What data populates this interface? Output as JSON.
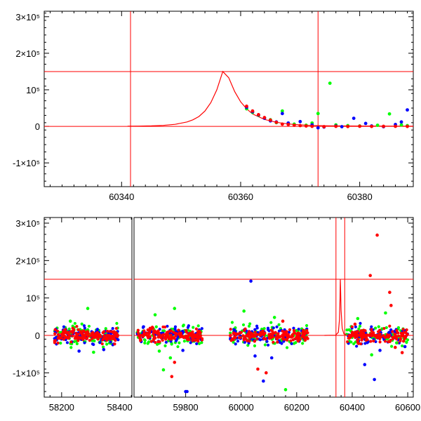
{
  "chart_data": [
    {
      "type": "scatter",
      "title": "",
      "xlabel": "",
      "ylabel": "",
      "xlim": [
        60327,
        60389
      ],
      "ylim": [
        -165000,
        315000
      ],
      "y_ticks": [
        {
          "value": -100000,
          "label": "-1×10⁵"
        },
        {
          "value": 0,
          "label": "0"
        },
        {
          "value": 100000,
          "label": "10⁵"
        },
        {
          "value": 200000,
          "label": "2×10⁵"
        },
        {
          "value": 300000,
          "label": "3×10⁵"
        }
      ],
      "x_ticks": [
        {
          "value": 60340,
          "label": "60340"
        },
        {
          "value": 60360,
          "label": "60360"
        },
        {
          "value": 60380,
          "label": "60380"
        }
      ],
      "vertical_lines": [
        60341.5,
        60373
      ],
      "horizontal_lines": [
        0,
        150000
      ],
      "model_curve": {
        "color": "#ff0000",
        "points": [
          [
            60341,
            400
          ],
          [
            60343,
            700
          ],
          [
            60345,
            1300
          ],
          [
            60347,
            2600
          ],
          [
            60349,
            5500
          ],
          [
            60351,
            12000
          ],
          [
            60352,
            18000
          ],
          [
            60353,
            27000
          ],
          [
            60354,
            42000
          ],
          [
            60355,
            65000
          ],
          [
            60356,
            100000
          ],
          [
            60357,
            150000
          ],
          [
            60358,
            133000
          ],
          [
            60359,
            95000
          ],
          [
            60360,
            67000
          ],
          [
            60361,
            48000
          ],
          [
            60362,
            34000
          ],
          [
            60364,
            19000
          ],
          [
            60366,
            11000
          ],
          [
            60368,
            6500
          ],
          [
            60370,
            4000
          ],
          [
            60372,
            2500
          ],
          [
            60375,
            1500
          ],
          [
            60380,
            800
          ],
          [
            60389,
            400
          ]
        ]
      },
      "series": [
        {
          "color": "#00ff00",
          "points": [
            [
              60361,
              48000
            ],
            [
              60362,
              38000
            ],
            [
              60363,
              30000
            ],
            [
              60364,
              23000
            ],
            [
              60365,
              18000
            ],
            [
              60366,
              10000
            ],
            [
              60367,
              42000
            ],
            [
              60368,
              8000
            ],
            [
              60369,
              6000
            ],
            [
              60371,
              3000
            ],
            [
              60372,
              9000
            ],
            [
              60373,
              35000
            ],
            [
              60375,
              118000
            ],
            [
              60376,
              4000
            ],
            [
              60378,
              2000
            ],
            [
              60380,
              1000
            ],
            [
              60383,
              3000
            ],
            [
              60385,
              34000
            ],
            [
              60387,
              4000
            ],
            [
              60388,
              2000
            ]
          ]
        },
        {
          "color": "#0000ff",
          "points": [
            [
              60361,
              52000
            ],
            [
              60362,
              40000
            ],
            [
              60363,
              31000
            ],
            [
              60364,
              22000
            ],
            [
              60365,
              15000
            ],
            [
              60366,
              12000
            ],
            [
              60367,
              35000
            ],
            [
              60368,
              9000
            ],
            [
              60370,
              13000
            ],
            [
              60372,
              4000
            ],
            [
              60373,
              -4000
            ],
            [
              60374,
              -2000
            ],
            [
              60376,
              1000
            ],
            [
              60377,
              -1000
            ],
            [
              60379,
              22000
            ],
            [
              60381,
              8000
            ],
            [
              60382,
              1000
            ],
            [
              60384,
              -1000
            ],
            [
              60386,
              5000
            ],
            [
              60387,
              12000
            ],
            [
              60388,
              45000
            ]
          ]
        },
        {
          "color": "#ff0000",
          "points": [
            [
              60361,
              55000
            ],
            [
              60362,
              42000
            ],
            [
              60363,
              32000
            ],
            [
              60364,
              24000
            ],
            [
              60365,
              17000
            ],
            [
              60366,
              11000
            ],
            [
              60367,
              6000
            ],
            [
              60368,
              5000
            ],
            [
              60369,
              3000
            ],
            [
              60370,
              2000
            ],
            [
              60371,
              1000
            ],
            [
              60372,
              0
            ],
            [
              60374,
              -1000
            ],
            [
              60376,
              0
            ],
            [
              60378,
              -500
            ],
            [
              60380,
              200
            ],
            [
              60382,
              -300
            ],
            [
              60384,
              0
            ],
            [
              60386,
              100
            ],
            [
              60388,
              -200
            ]
          ]
        }
      ]
    },
    {
      "type": "scatter",
      "title": "",
      "xlabel": "",
      "ylabel": "",
      "xlim": [
        58140,
        60620
      ],
      "x_gap": [
        58442,
        59614
      ],
      "ylim": [
        -165000,
        315000
      ],
      "y_ticks": [
        {
          "value": -100000,
          "label": "-1×10⁵"
        },
        {
          "value": 0,
          "label": "0"
        },
        {
          "value": 100000,
          "label": "10⁵"
        },
        {
          "value": 200000,
          "label": "2×10⁵"
        },
        {
          "value": 300000,
          "label": "3×10⁵"
        }
      ],
      "x_ticks": [
        {
          "value": 58200,
          "label": "58200"
        },
        {
          "value": 58400,
          "label": "58400"
        },
        {
          "value": 59800,
          "label": "59800"
        },
        {
          "value": 60000,
          "label": "60000"
        },
        {
          "value": 60200,
          "label": "60200"
        },
        {
          "value": 60400,
          "label": "60400"
        },
        {
          "value": 60600,
          "label": "60600"
        }
      ],
      "vertical_lines": [
        60341.5,
        60373
      ],
      "horizontal_lines": [
        0,
        150000
      ],
      "seasons": [
        [
          58175,
          58395
        ],
        [
          59625,
          59860
        ],
        [
          59960,
          60240
        ],
        [
          60360,
          60600
        ]
      ],
      "model_curve": {
        "color": "#ff0000",
        "points": [
          [
            60300,
            0
          ],
          [
            60340,
            500
          ],
          [
            60350,
            8000
          ],
          [
            60354,
            42000
          ],
          [
            60356,
            100000
          ],
          [
            60357,
            150000
          ],
          [
            60358,
            133000
          ],
          [
            60360,
            67000
          ],
          [
            60364,
            19000
          ],
          [
            60370,
            4000
          ],
          [
            60380,
            800
          ],
          [
            60400,
            0
          ]
        ]
      },
      "series": [
        {
          "color": "#00ff00",
          "outliers": [
            [
              58290,
              72000
            ],
            [
              58310,
              -45000
            ],
            [
              58230,
              38000
            ],
            [
              59690,
              55000
            ],
            [
              59705,
              -42000
            ],
            [
              59720,
              -92000
            ],
            [
              59760,
              72000
            ],
            [
              59745,
              -60000
            ],
            [
              60010,
              65000
            ],
            [
              60160,
              -145000
            ],
            [
              60120,
              48000
            ],
            [
              60420,
              45000
            ],
            [
              60470,
              -52000
            ],
            [
              60520,
              60000
            ],
            [
              60560,
              -20000
            ]
          ]
        },
        {
          "color": "#0000ff",
          "outliers": [
            [
              58260,
              -42000
            ],
            [
              58345,
              -38000
            ],
            [
              59800,
              -150000
            ],
            [
              59805,
              -150000
            ],
            [
              59790,
              -40000
            ],
            [
              60035,
              145000
            ],
            [
              60080,
              -122000
            ],
            [
              60050,
              -55000
            ],
            [
              60110,
              -60000
            ],
            [
              60445,
              -78000
            ],
            [
              60480,
              -118000
            ],
            [
              60500,
              -40000
            ],
            [
              60590,
              -30000
            ]
          ]
        },
        {
          "color": "#ff0000",
          "outliers": [
            [
              59750,
              -110000
            ],
            [
              59760,
              -72000
            ],
            [
              60060,
              -90000
            ],
            [
              60090,
              -100000
            ],
            [
              60150,
              38000
            ],
            [
              60490,
              268000
            ],
            [
              60465,
              160000
            ],
            [
              60535,
              115000
            ],
            [
              60540,
              80000
            ],
            [
              60555,
              -32000
            ],
            [
              60580,
              -46000
            ],
            [
              60410,
              30000
            ]
          ]
        }
      ]
    }
  ]
}
